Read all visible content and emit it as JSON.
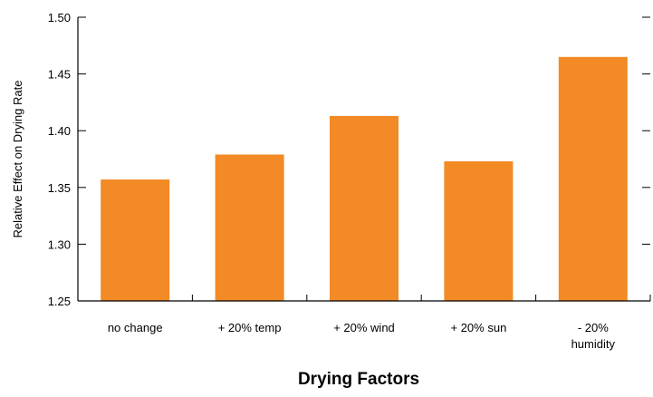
{
  "chart_data": {
    "type": "bar",
    "categories": [
      [
        "no change"
      ],
      [
        "+ 20% temp"
      ],
      [
        "+ 20% wind"
      ],
      [
        "+ 20% sun"
      ],
      [
        "- 20%",
        "humidity"
      ]
    ],
    "values": [
      1.357,
      1.379,
      1.413,
      1.373,
      1.465
    ],
    "xlabel": "Drying Factors",
    "ylabel": "Relative Effect on Drying Rate",
    "ylim": [
      1.25,
      1.5
    ],
    "yticks": [
      "1.25",
      "1.30",
      "1.35",
      "1.40",
      "1.45",
      "1.50"
    ],
    "grid": false,
    "bar_color": "#f28a25"
  }
}
